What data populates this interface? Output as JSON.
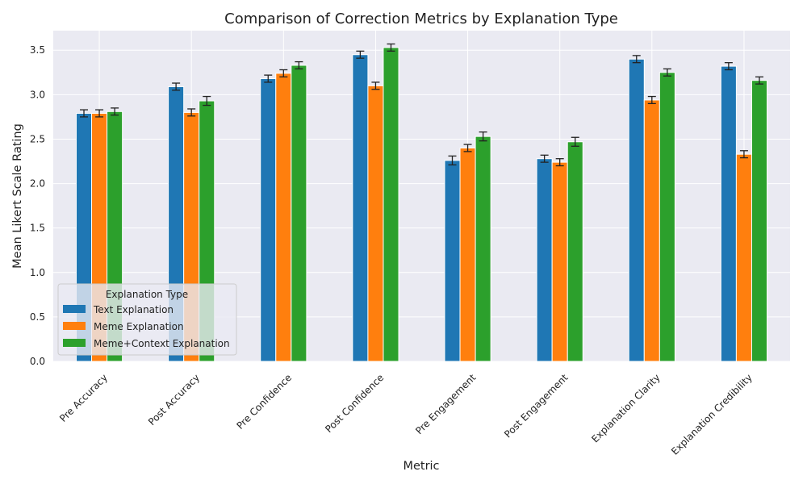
{
  "chart_data": {
    "type": "bar",
    "title": "Comparison of Correction Metrics by Explanation Type",
    "xlabel": "Metric",
    "ylabel": "Mean Likert Scale Rating",
    "ylim": [
      0,
      3.72
    ],
    "yticks": [
      "0.0",
      "0.5",
      "1.0",
      "1.5",
      "2.0",
      "2.5",
      "3.0",
      "3.5"
    ],
    "grid": true,
    "legend_title": "Explanation Type",
    "legend_position": "lower-left",
    "categories": [
      "Pre Accuracy",
      "Post Accuracy",
      "Pre Confidence",
      "Post Confidence",
      "Pre Engagement",
      "Post Engagement",
      "Explanation Clarity",
      "Explanation Credibility"
    ],
    "series": [
      {
        "name": "Text Explanation",
        "color": "#1f77b4",
        "values": [
          2.79,
          3.09,
          3.18,
          3.45,
          2.26,
          2.28,
          3.4,
          3.32
        ],
        "errors": [
          0.04,
          0.04,
          0.04,
          0.04,
          0.05,
          0.04,
          0.04,
          0.04
        ]
      },
      {
        "name": "Meme Explanation",
        "color": "#ff7f0e",
        "values": [
          2.79,
          2.8,
          3.24,
          3.1,
          2.4,
          2.24,
          2.94,
          2.33
        ],
        "errors": [
          0.04,
          0.04,
          0.04,
          0.04,
          0.04,
          0.04,
          0.04,
          0.04
        ]
      },
      {
        "name": "Meme+Context Explanation",
        "color": "#2ca02c",
        "values": [
          2.81,
          2.93,
          3.33,
          3.53,
          2.53,
          2.47,
          3.25,
          3.16
        ],
        "errors": [
          0.04,
          0.05,
          0.04,
          0.04,
          0.05,
          0.05,
          0.04,
          0.04
        ]
      }
    ]
  },
  "style": {
    "plot_background": "#eaeaf2",
    "grid_color": "#ffffff",
    "error_bar_color": "#222222"
  }
}
